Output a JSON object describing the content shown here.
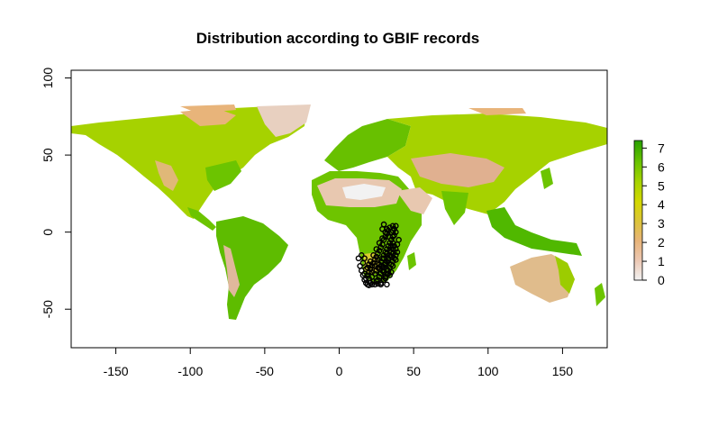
{
  "chart_data": {
    "type": "heatmap",
    "title": "Distribution according to GBIF records",
    "xlabel": "",
    "ylabel": "",
    "xlim": [
      -180,
      180
    ],
    "ylim": [
      -75,
      105
    ],
    "x_ticks": [
      -150,
      -100,
      -50,
      0,
      50,
      100,
      150
    ],
    "x_tick_labels": [
      "-150",
      "-100",
      "-50",
      "0",
      "50",
      "100",
      "150"
    ],
    "y_ticks": [
      -50,
      0,
      50,
      100
    ],
    "y_tick_labels": [
      "-50",
      "0",
      "50",
      "100"
    ],
    "legend": {
      "placement": "right",
      "min": 0,
      "max": 7.4,
      "ticks": [
        0,
        1,
        2,
        3,
        4,
        5,
        6,
        7
      ],
      "tick_labels": [
        "0",
        "1",
        "2",
        "3",
        "4",
        "5",
        "6",
        "7"
      ],
      "colors": [
        "#f2f2f2",
        "#ecc8b4",
        "#e8b47a",
        "#dcc43a",
        "#d4d800",
        "#a8d400",
        "#6cc400",
        "#28a000"
      ]
    },
    "series": [
      {
        "type": "points",
        "color": "#000000",
        "points": [
          [
            14,
            -22
          ],
          [
            15,
            -25
          ],
          [
            16,
            -28
          ],
          [
            17,
            -31
          ],
          [
            18,
            -33
          ],
          [
            19,
            -34
          ],
          [
            20,
            -34.5
          ],
          [
            22,
            -34
          ],
          [
            24,
            -34
          ],
          [
            26,
            -33.5
          ],
          [
            28,
            -33
          ],
          [
            30,
            -31
          ],
          [
            31,
            -29
          ],
          [
            32,
            -27
          ],
          [
            33,
            -25
          ],
          [
            34,
            -23
          ],
          [
            35,
            -21
          ],
          [
            36,
            -19
          ],
          [
            37,
            -17
          ],
          [
            38,
            -15
          ],
          [
            39,
            -13
          ],
          [
            38,
            -11
          ],
          [
            37,
            -9
          ],
          [
            36,
            -7
          ],
          [
            35,
            -5
          ],
          [
            36,
            -3
          ],
          [
            37,
            -2
          ],
          [
            38,
            0
          ],
          [
            37,
            2
          ],
          [
            36,
            4
          ],
          [
            34,
            3
          ],
          [
            33,
            1
          ],
          [
            32,
            -1
          ],
          [
            31,
            -3
          ],
          [
            30,
            -5
          ],
          [
            29,
            -8
          ],
          [
            28,
            -10
          ],
          [
            27,
            -12
          ],
          [
            26,
            -14
          ],
          [
            25,
            -16
          ],
          [
            24,
            -18
          ],
          [
            23,
            -20
          ],
          [
            22,
            -22
          ],
          [
            21,
            -24
          ],
          [
            20,
            -26
          ],
          [
            19,
            -28
          ],
          [
            18,
            -30
          ],
          [
            20,
            -30
          ],
          [
            22,
            -29
          ],
          [
            24,
            -27
          ],
          [
            25,
            -25
          ],
          [
            26,
            -23
          ],
          [
            27,
            -21
          ],
          [
            28,
            -19
          ],
          [
            29,
            -17
          ],
          [
            30,
            -15
          ],
          [
            31,
            -13
          ],
          [
            32,
            -11
          ],
          [
            33,
            -9
          ],
          [
            34,
            -7
          ],
          [
            35,
            -9
          ],
          [
            36,
            -11
          ],
          [
            35,
            -13
          ],
          [
            34,
            -15
          ],
          [
            33,
            -17
          ],
          [
            32,
            -19
          ],
          [
            31,
            -21
          ],
          [
            30,
            -23
          ],
          [
            29,
            -25
          ],
          [
            28,
            -27
          ],
          [
            27,
            -29
          ],
          [
            26,
            -31
          ],
          [
            25,
            -32
          ],
          [
            23,
            -32
          ],
          [
            21,
            -33
          ],
          [
            27,
            -24
          ],
          [
            29,
            -22
          ],
          [
            31,
            -20
          ],
          [
            33,
            -18
          ],
          [
            35,
            -16
          ],
          [
            36,
            -14
          ],
          [
            34,
            -12
          ],
          [
            32,
            -14
          ],
          [
            30,
            -17
          ],
          [
            28,
            -22
          ],
          [
            30,
            -26
          ],
          [
            32,
            -24
          ],
          [
            31,
            -30
          ],
          [
            33,
            -27
          ],
          [
            19,
            -23
          ],
          [
            17,
            -27
          ],
          [
            16,
            -20
          ],
          [
            13,
            -17
          ],
          [
            21,
            -19
          ],
          [
            23,
            -15
          ],
          [
            25,
            -11
          ],
          [
            27,
            -7
          ],
          [
            29,
            -4
          ],
          [
            32,
            2
          ],
          [
            38,
            4
          ],
          [
            30,
            5
          ],
          [
            34,
            -28
          ],
          [
            26,
            -18
          ],
          [
            24,
            -22
          ],
          [
            22,
            -26
          ],
          [
            20,
            -21
          ],
          [
            18,
            -24
          ],
          [
            17,
            -17
          ],
          [
            15,
            -15
          ],
          [
            32,
            -34
          ],
          [
            28,
            -34
          ],
          [
            35,
            -26
          ],
          [
            36,
            -22
          ],
          [
            38,
            -18
          ],
          [
            39,
            -8
          ],
          [
            40,
            -5
          ],
          [
            31,
            0
          ],
          [
            29,
            2
          ],
          [
            36,
            1
          ],
          [
            33,
            -3
          ],
          [
            35,
            0
          ]
        ]
      }
    ]
  }
}
